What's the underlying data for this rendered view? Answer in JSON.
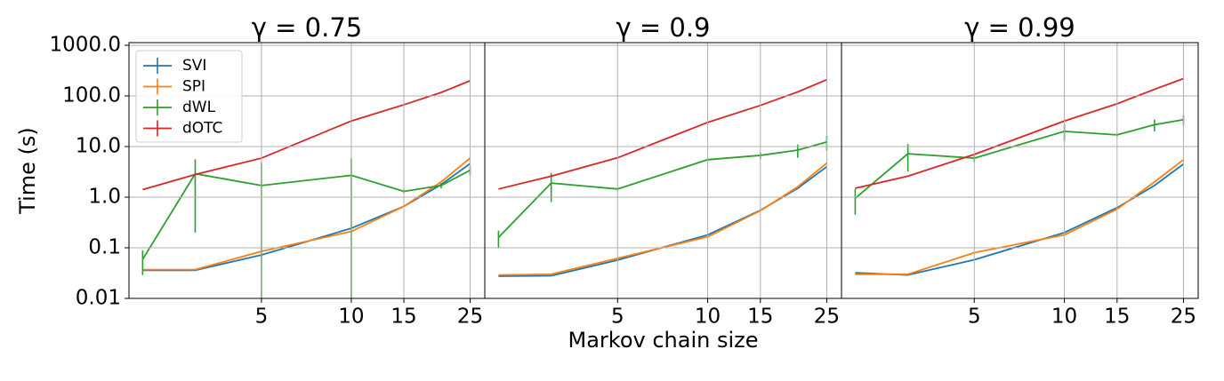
{
  "chart_data": [
    {
      "type": "line",
      "title": "γ = 0.75",
      "ylabel": "Time (s)",
      "xlog": true,
      "ylog": true,
      "grid": true,
      "legend": "upper left",
      "x": [
        2,
        3,
        5,
        10,
        15,
        20,
        25
      ],
      "xlim": [
        1.8,
        28
      ],
      "xticks": [
        5,
        10,
        15,
        25
      ],
      "ylim": [
        0.01,
        1130
      ],
      "yticks": [
        {
          "value": 1000,
          "label": "1000.0"
        },
        {
          "value": 100,
          "label": "100.0"
        },
        {
          "value": 10,
          "label": "10.0"
        },
        {
          "value": 1,
          "label": "1.0"
        },
        0.1,
        0.01
      ],
      "series": [
        {
          "name": "SVI",
          "color": "#1f77b4",
          "values": [
            0.036,
            0.036,
            0.072,
            0.243,
            0.66,
            1.77,
            4.6
          ]
        },
        {
          "name": "SPI",
          "color": "#ff7f0e",
          "values": [
            0.037,
            0.037,
            0.085,
            0.21,
            0.66,
            2.0,
            5.9
          ]
        },
        {
          "name": "dWL",
          "color": "#2ca02c",
          "values": [
            0.059,
            2.9,
            1.7,
            2.7,
            1.3,
            1.7,
            3.4
          ],
          "errors": [
            0.03,
            2.7,
            3.1,
            3.1,
            0.1,
            0.2,
            0.7
          ]
        },
        {
          "name": "dOTC",
          "color": "#d62728",
          "values": [
            1.41,
            2.8,
            5.9,
            32,
            67,
            117,
            200
          ]
        }
      ]
    },
    {
      "type": "line",
      "title": "γ = 0.9",
      "xlabel": "Markov chain size",
      "xlog": true,
      "ylog": true,
      "grid": true,
      "sharey": true,
      "x": [
        2,
        3,
        5,
        10,
        15,
        20,
        25
      ],
      "xlim": [
        1.8,
        28
      ],
      "xticks": [
        5,
        10,
        15,
        25
      ],
      "ylim": [
        0.01,
        1130
      ],
      "series": [
        {
          "color": "#1f77b4",
          "values": [
            0.0275,
            0.028,
            0.057,
            0.18,
            0.55,
            1.5,
            4.0
          ]
        },
        {
          "color": "#ff7f0e",
          "values": [
            0.029,
            0.03,
            0.062,
            0.165,
            0.54,
            1.6,
            4.7
          ]
        },
        {
          "color": "#2ca02c",
          "values": [
            0.16,
            1.9,
            1.45,
            5.5,
            6.7,
            8.5,
            12.3
          ],
          "errors": [
            0.06,
            1.1,
            0.1,
            0.3,
            1.0,
            2.5,
            4.0
          ]
        },
        {
          "color": "#d62728",
          "values": [
            1.45,
            2.6,
            6.0,
            30,
            65,
            120,
            210
          ]
        }
      ]
    },
    {
      "type": "line",
      "title": "γ = 0.99",
      "xlog": true,
      "ylog": true,
      "grid": true,
      "sharey": true,
      "x": [
        2,
        3,
        5,
        10,
        15,
        20,
        25
      ],
      "xlim": [
        1.8,
        28
      ],
      "xticks": [
        5,
        10,
        15,
        25
      ],
      "ylim": [
        0.01,
        1130
      ],
      "series": [
        {
          "color": "#1f77b4",
          "values": [
            0.032,
            0.029,
            0.058,
            0.2,
            0.62,
            1.7,
            4.5
          ]
        },
        {
          "color": "#ff7f0e",
          "values": [
            0.03,
            0.03,
            0.08,
            0.18,
            0.58,
            2.0,
            5.5
          ]
        },
        {
          "color": "#2ca02c",
          "values": [
            0.95,
            7.2,
            5.9,
            20,
            17,
            27,
            34
          ],
          "errors": [
            0.5,
            4.0,
            1.0,
            7.0,
            1.0,
            7.0,
            8.0
          ]
        },
        {
          "color": "#d62728",
          "values": [
            1.5,
            2.6,
            7.0,
            32,
            70,
            135,
            220
          ]
        }
      ]
    }
  ]
}
